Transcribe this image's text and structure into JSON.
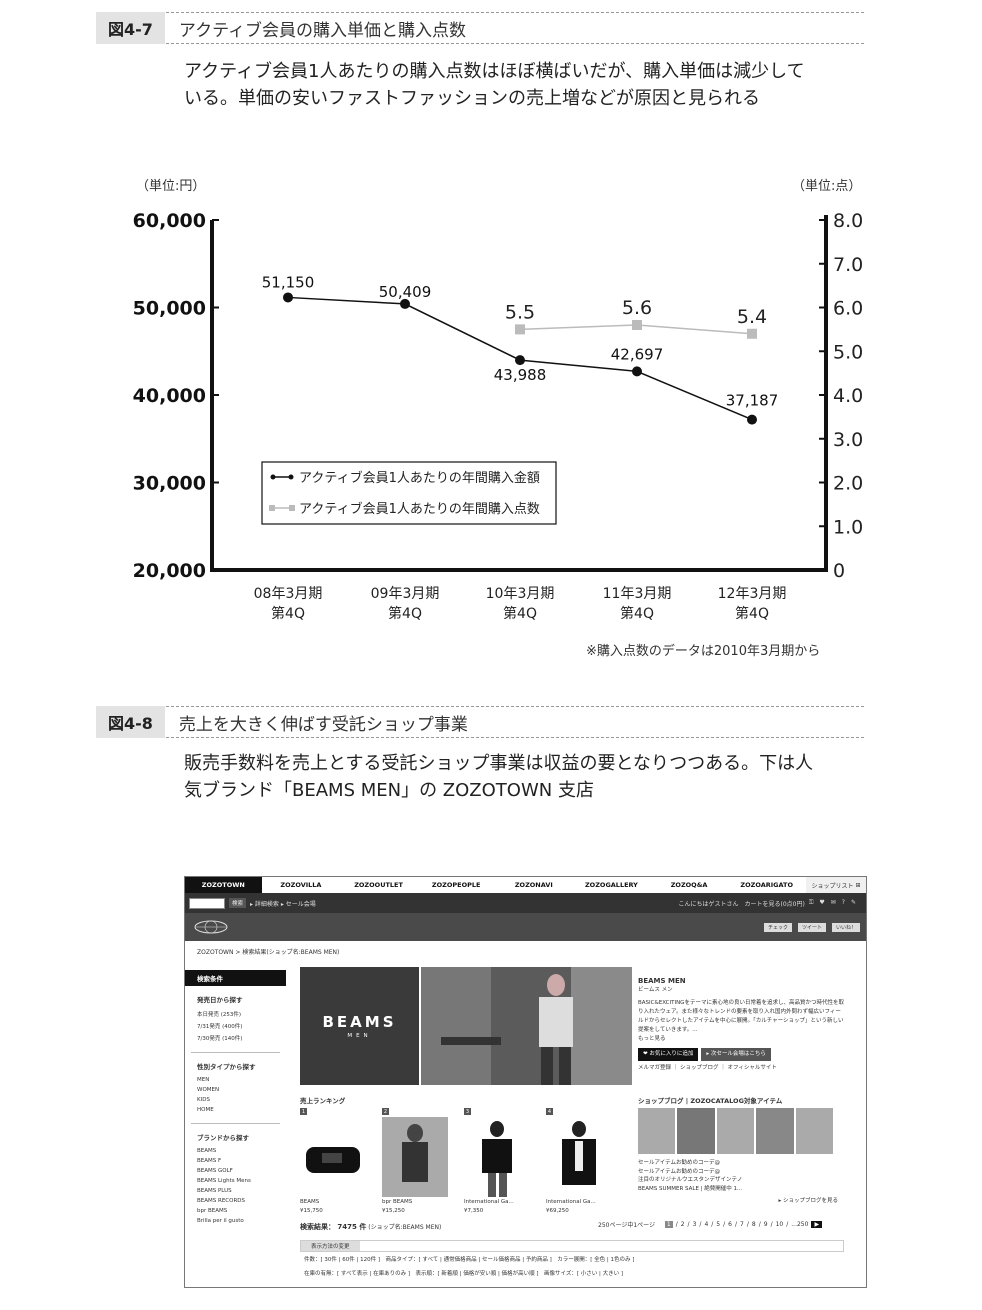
{
  "fig7": {
    "number": "図4-7",
    "title": "アクティブ会員の購入単価と購入点数",
    "desc_line1": "アクティブ会員1人あたりの購入点数はほぼ横ばいだが、購入単価は減少して",
    "desc_line2": "いる。単価の安いファストファッションの売上増などが原因と見られる",
    "note": "※購入点数のデータは2010年3月期から"
  },
  "chart_data": {
    "type": "line",
    "left_axis_label": "（単位:円）",
    "right_axis_label": "（単位:点）",
    "categories": [
      [
        "08年3月期",
        "第4Q"
      ],
      [
        "09年3月期",
        "第4Q"
      ],
      [
        "10年3月期",
        "第4Q"
      ],
      [
        "11年3月期",
        "第4Q"
      ],
      [
        "12年3月期",
        "第4Q"
      ]
    ],
    "left_ylim": [
      20000,
      60000
    ],
    "right_ylim": [
      0,
      8
    ],
    "left_ticks": [
      "20,000",
      "30,000",
      "40,000",
      "50,000",
      "60,000"
    ],
    "right_ticks": [
      "0",
      "1.0",
      "2.0",
      "3.0",
      "4.0",
      "5.0",
      "6.0",
      "7.0",
      "8.0"
    ],
    "series": [
      {
        "name": "アクティブ会員1人あたりの年間購入金額",
        "axis": "left",
        "color": "#111111",
        "values": [
          51150,
          50409,
          43988,
          42697,
          37187
        ],
        "labels": [
          "51,150",
          "50,409",
          "43,988",
          "42,697",
          "37,187"
        ]
      },
      {
        "name": "アクティブ会員1人あたりの年間購入点数",
        "axis": "right",
        "color": "#bbbbbb",
        "values": [
          null,
          null,
          5.5,
          5.6,
          5.4
        ],
        "labels": [
          "",
          "",
          "5.5",
          "5.6",
          "5.4"
        ]
      }
    ],
    "grid": false,
    "legend": "bottom-left"
  },
  "fig8": {
    "number": "図4-8",
    "title": "売上を大きく伸ばす受託ショップ事業",
    "desc_line1": "販売手数料を売上とする受託ショップ事業は収益の要となりつつある。下は人",
    "desc_line2": "気ブランド「BEAMS MEN」の ZOZOTOWN 支店"
  },
  "zozo": {
    "tabs": [
      "ZOZOTOWN",
      "ZOZOVILLA",
      "ZOZOOUTLET",
      "ZOZOPEOPLE",
      "ZOZONAVI",
      "ZOZOGALLERY",
      "ZOZOQ&A",
      "ZOZOARIGATO"
    ],
    "shoplist": "ショップリスト",
    "search_btn": "検索",
    "detail_search": "▸ 詳細検索  ▸ セール会場",
    "greeting": "こんにちはゲストさん　カートを見る(0点0円)",
    "check": "チェック",
    "tweet": "ツイート",
    "like": "いいね！",
    "breadcrumb": "ZOZOTOWN > 検索結果(ショップ名:BEAMS MEN)",
    "left": {
      "header": "検索条件",
      "s1": "発売日から探す",
      "s1_items": [
        "本日発売 (253件)",
        "7/31発売 (400件)",
        "7/30発売 (140件)"
      ],
      "s2": "性別タイプから探す",
      "s2_items": [
        "MEN",
        "WOMEN",
        "KIDS",
        "HOME"
      ],
      "s3": "ブランドから探す",
      "s3_items": [
        "BEAMS",
        "BEAMS F",
        "BEAMS GOLF",
        "BEAMS Lights Mens",
        "BEAMS PLUS",
        "BEAMS RECORDS",
        "bpr BEAMS",
        "Brilla per il gusto"
      ]
    },
    "banner_logo": "BEAMS",
    "banner_logo_sub": "MEN",
    "shop_name": "BEAMS MEN",
    "shop_kana": "ビームス メン",
    "shop_desc": "BASIC&EXCITINGをテーマに素心地の良い日常着を追求し、高品質かつ時代性を取り入れたウェア。また様々なトレンドの要素を取り入れ国内外問わず幅広いフィールドからセレクトしたアイテムを中心に展開。「カルチャーショップ」という新しい提案をしていきます。...",
    "shop_more": "もっと見る",
    "fav_btn": "お気に入りに追加",
    "sale_btn": "▸ 次セール会場はこちら",
    "shop_links": "メルマガ登録 ｜ ショップブログ ｜ オフィシャルサイト",
    "ranking_head": "売上ランキング",
    "ranking": [
      {
        "num": "1",
        "brand": "BEAMS",
        "price": "¥15,750"
      },
      {
        "num": "2",
        "brand": "bpr BEAMS",
        "price": "¥15,250"
      },
      {
        "num": "3",
        "brand": "International Ga...",
        "price": "¥7,350"
      },
      {
        "num": "4",
        "brand": "International Ga...",
        "price": "¥69,250"
      }
    ],
    "blog_head": "ショップブログ | ZOZOCATALOG対象アイテム",
    "blog_lines": [
      "セールアイテムお勧めのコーデ@",
      "セールアイテムお勧めのコーデ@",
      "注目のオリジナルウエスタンデザインテノ",
      "BEAMS SUMMER SALE | 絶賛開催中 1..."
    ],
    "blog_more": "▸ ショップブログを見る",
    "results_count": "検索結果： 7475 件",
    "results_shop": "(ショップ名:BEAMS MEN)",
    "per_page": "250ページ中1ページ",
    "pages": [
      "1",
      "2",
      "3",
      "4",
      "5",
      "6",
      "7",
      "8",
      "9",
      "10",
      "...250"
    ],
    "tab_change": "表示方法の変更",
    "filter1": "件数：[ 30件 | 60件 | 120件 ]　商品タイプ：[ すべて | 通常価格商品 | セール価格商品 | 予約商品 ]　カラー展開：[ 全色 | 1色のみ ]",
    "filter2": "在庫の有無：[ すべて表示 | 在庫ありのみ ]　表示順：[ 新着順 | 価格が安い順 | 価格が高い順 ]　画像サイズ：[ 小さい | 大きい ]"
  }
}
